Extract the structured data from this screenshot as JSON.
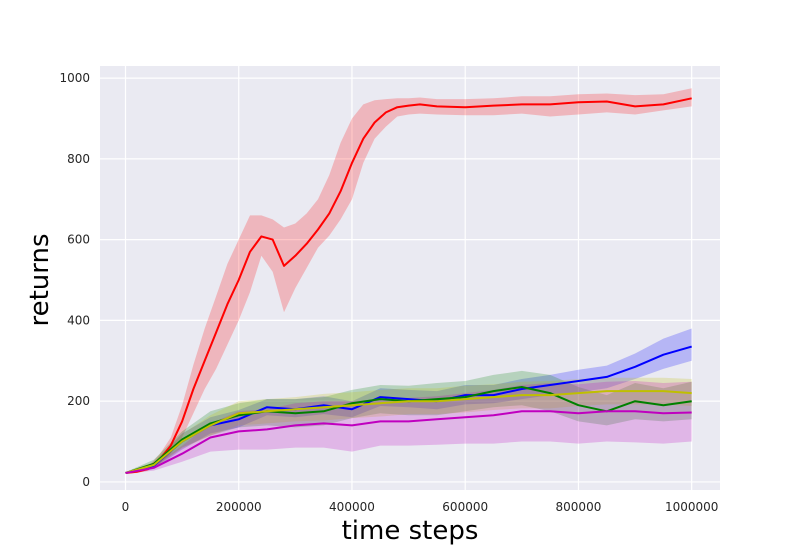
{
  "chart_data": {
    "type": "line",
    "title": "",
    "xlabel": "time steps",
    "ylabel": "returns",
    "xlim": [
      -45000,
      1050000
    ],
    "ylim": [
      -20,
      1030
    ],
    "xticks": [
      0,
      200000,
      400000,
      600000,
      800000,
      1000000
    ],
    "xtick_labels": [
      "0",
      "200000",
      "400000",
      "600000",
      "800000",
      "1000000"
    ],
    "yticks": [
      0,
      200,
      400,
      600,
      800,
      1000
    ],
    "ytick_labels": [
      "0",
      "200",
      "400",
      "600",
      "800",
      "1000"
    ],
    "grid": true,
    "background": "#eaeaf2",
    "series": [
      {
        "color": "#ff0000",
        "x": [
          0,
          20000,
          40000,
          60000,
          80000,
          100000,
          120000,
          140000,
          160000,
          180000,
          200000,
          220000,
          240000,
          260000,
          280000,
          300000,
          320000,
          340000,
          360000,
          380000,
          400000,
          420000,
          440000,
          460000,
          480000,
          500000,
          520000,
          550000,
          600000,
          650000,
          700000,
          750000,
          800000,
          850000,
          900000,
          950000,
          1000000
        ],
        "y": [
          22,
          25,
          32,
          55,
          90,
          150,
          230,
          300,
          370,
          440,
          500,
          570,
          608,
          600,
          535,
          560,
          590,
          625,
          665,
          720,
          790,
          850,
          890,
          915,
          928,
          932,
          935,
          930,
          928,
          932,
          935,
          935,
          940,
          942,
          930,
          935,
          950
        ],
        "lower": [
          20,
          22,
          28,
          45,
          70,
          110,
          170,
          230,
          280,
          340,
          400,
          470,
          560,
          520,
          420,
          480,
          530,
          580,
          610,
          650,
          700,
          790,
          850,
          880,
          905,
          910,
          912,
          910,
          908,
          908,
          912,
          905,
          910,
          915,
          910,
          920,
          930
        ],
        "upper": [
          24,
          28,
          38,
          68,
          110,
          190,
          290,
          380,
          460,
          540,
          600,
          660,
          660,
          650,
          630,
          640,
          665,
          700,
          760,
          840,
          900,
          935,
          945,
          948,
          950,
          950,
          952,
          948,
          948,
          950,
          955,
          955,
          960,
          962,
          958,
          960,
          975
        ]
      },
      {
        "color": "#0000ff",
        "x": [
          0,
          50000,
          100000,
          150000,
          200000,
          250000,
          300000,
          350000,
          400000,
          450000,
          500000,
          550000,
          600000,
          650000,
          700000,
          750000,
          800000,
          850000,
          900000,
          950000,
          1000000
        ],
        "y": [
          22,
          40,
          100,
          140,
          155,
          185,
          180,
          190,
          180,
          210,
          205,
          200,
          215,
          215,
          230,
          240,
          250,
          260,
          285,
          315,
          335
        ],
        "lower": [
          20,
          32,
          80,
          120,
          135,
          165,
          160,
          168,
          160,
          188,
          185,
          180,
          192,
          195,
          205,
          215,
          222,
          232,
          255,
          280,
          300
        ],
        "upper": [
          24,
          48,
          120,
          160,
          178,
          205,
          205,
          212,
          200,
          232,
          228,
          225,
          240,
          240,
          255,
          265,
          278,
          288,
          318,
          355,
          380
        ]
      },
      {
        "color": "#008000",
        "x": [
          0,
          50000,
          100000,
          150000,
          200000,
          250000,
          300000,
          350000,
          400000,
          450000,
          500000,
          550000,
          600000,
          650000,
          700000,
          750000,
          800000,
          850000,
          900000,
          950000,
          1000000
        ],
        "y": [
          22,
          45,
          105,
          145,
          165,
          175,
          170,
          175,
          195,
          205,
          200,
          205,
          210,
          225,
          235,
          220,
          190,
          175,
          200,
          190,
          200
        ],
        "lower": [
          20,
          35,
          85,
          115,
          135,
          140,
          135,
          140,
          158,
          170,
          165,
          165,
          175,
          185,
          190,
          175,
          150,
          140,
          155,
          150,
          155
        ],
        "upper": [
          24,
          55,
          125,
          175,
          195,
          205,
          205,
          210,
          228,
          240,
          238,
          245,
          250,
          265,
          275,
          265,
          235,
          215,
          245,
          232,
          248
        ]
      },
      {
        "color": "#bfbf00",
        "x": [
          0,
          50000,
          100000,
          150000,
          200000,
          250000,
          300000,
          350000,
          400000,
          450000,
          500000,
          550000,
          600000,
          650000,
          700000,
          750000,
          800000,
          850000,
          900000,
          950000,
          1000000
        ],
        "y": [
          22,
          42,
          100,
          140,
          170,
          175,
          180,
          185,
          190,
          195,
          200,
          200,
          205,
          210,
          215,
          215,
          220,
          225,
          225,
          225,
          220
        ],
        "lower": [
          20,
          34,
          82,
          115,
          140,
          145,
          150,
          152,
          158,
          162,
          168,
          168,
          172,
          178,
          182,
          182,
          188,
          192,
          192,
          192,
          188
        ],
        "upper": [
          24,
          50,
          118,
          165,
          200,
          205,
          210,
          218,
          222,
          228,
          232,
          232,
          238,
          242,
          248,
          250,
          255,
          258,
          258,
          258,
          255
        ]
      },
      {
        "color": "#bf00bf",
        "x": [
          0,
          50000,
          100000,
          150000,
          200000,
          250000,
          300000,
          350000,
          400000,
          450000,
          500000,
          550000,
          600000,
          650000,
          700000,
          750000,
          800000,
          850000,
          900000,
          950000,
          1000000
        ],
        "y": [
          22,
          35,
          70,
          110,
          125,
          130,
          140,
          145,
          140,
          150,
          150,
          155,
          160,
          165,
          175,
          175,
          170,
          175,
          175,
          170,
          172
        ],
        "lower": [
          20,
          28,
          50,
          75,
          80,
          80,
          85,
          85,
          75,
          90,
          90,
          92,
          95,
          95,
          100,
          100,
          95,
          100,
          98,
          95,
          100
        ],
        "upper": [
          24,
          42,
          90,
          145,
          175,
          180,
          195,
          200,
          200,
          205,
          208,
          212,
          220,
          228,
          240,
          245,
          242,
          248,
          250,
          245,
          248
        ]
      }
    ]
  }
}
